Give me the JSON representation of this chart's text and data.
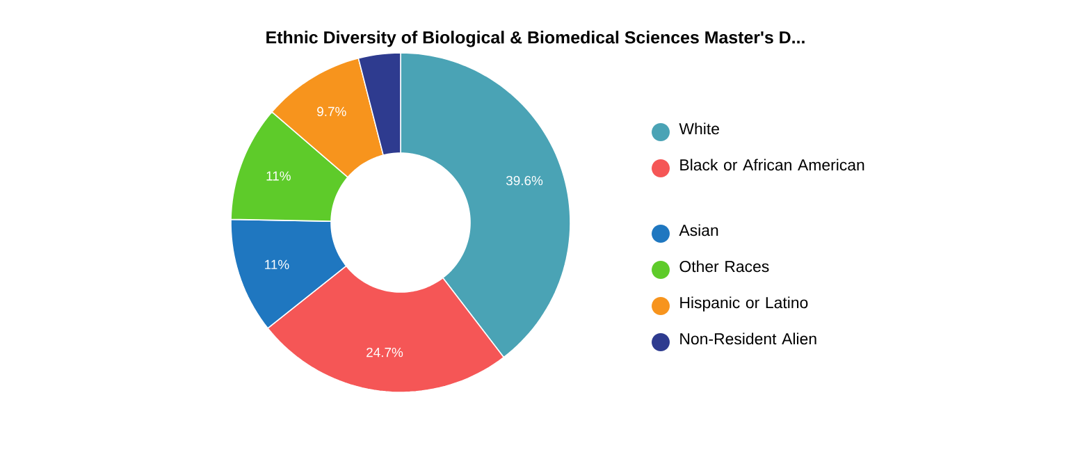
{
  "chart_data": {
    "type": "donut",
    "title": "Ethnic Diversity of Biological & Biomedical Sciences Master's D...",
    "categories": [
      "White",
      "Black or African American",
      "Asian",
      "Other Races",
      "Hispanic or Latino",
      "Non-Resident Alien"
    ],
    "values": [
      39.6,
      24.7,
      11,
      11,
      9.7,
      4.0
    ],
    "colors": [
      "#4aa3b5",
      "#f55656",
      "#1f77c0",
      "#5ecb2a",
      "#f7941d",
      "#2e3b8f"
    ],
    "value_labels": [
      "39.6%",
      "24.7%",
      "11%",
      "11%",
      "9.7%",
      null
    ],
    "legend": "right"
  }
}
